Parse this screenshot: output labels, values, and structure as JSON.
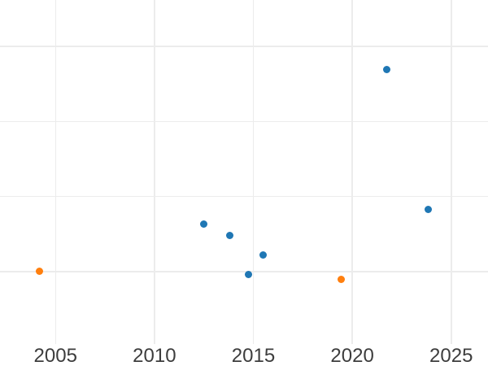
{
  "chart_data": {
    "type": "scatter",
    "title": "",
    "xlabel": "",
    "ylabel": "",
    "x_axis": {
      "tick_labels": [
        "2005",
        "2010",
        "2015",
        "2020",
        "2025"
      ],
      "tick_values": [
        2005,
        2010,
        2015,
        2020,
        2025
      ],
      "range": [
        2002.2,
        2026.9
      ],
      "gridlines": true
    },
    "y_axis": {
      "tick_labels_visible": false,
      "gridline_values": [
        0,
        1,
        2,
        3
      ],
      "range": [
        -0.96,
        3.62
      ],
      "units": "gridline-units (no axis labels visible; 0 = bottom visible gridline, 1 unit = one gridline spacing)"
    },
    "grid": true,
    "legend": "none",
    "marker_diameter_px": 9,
    "series": [
      {
        "name": "series-blue",
        "color": "#1f77b4",
        "points": [
          {
            "x": 2012.5,
            "y": 0.63
          },
          {
            "x": 2013.8,
            "y": 0.48
          },
          {
            "x": 2014.75,
            "y": -0.04
          },
          {
            "x": 2015.5,
            "y": 0.22
          },
          {
            "x": 2021.75,
            "y": 2.69
          },
          {
            "x": 2023.85,
            "y": 0.83
          }
        ]
      },
      {
        "name": "series-orange",
        "color": "#ff7f0e",
        "points": [
          {
            "x": 2004.2,
            "y": 0.01
          },
          {
            "x": 2019.45,
            "y": -0.1
          }
        ]
      }
    ],
    "colors": {
      "background": "#ffffff",
      "grid": "#ececec",
      "tick_text": "#3d3d3d"
    }
  }
}
